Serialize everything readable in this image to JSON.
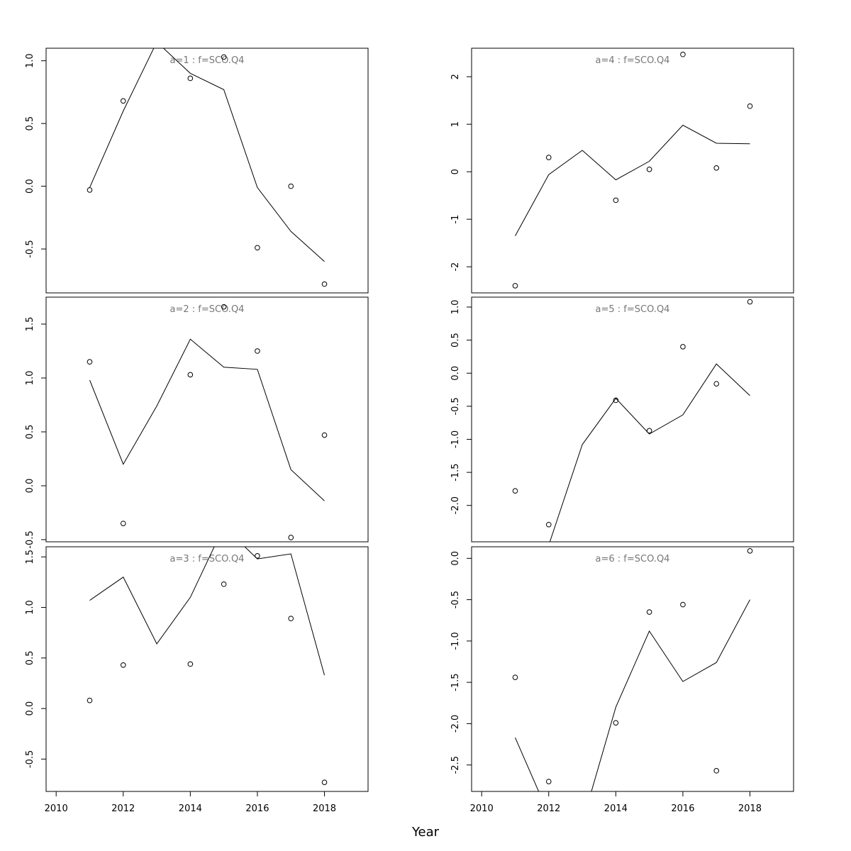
{
  "chart_data": {
    "type": "line",
    "xlabel": "Year",
    "xlim": [
      2009.7,
      2019.3
    ],
    "xticks": [
      2010,
      2012,
      2014,
      2016,
      2018
    ],
    "panels": [
      {
        "title": "a=1 : f=SCO.Q4",
        "ylim": [
          -0.85,
          1.1
        ],
        "yticks": [
          -0.5,
          0.0,
          0.5,
          1.0
        ],
        "yticklabels": [
          "-0.5",
          "0.0",
          "0.5",
          "1.0"
        ],
        "fitted": {
          "x": [
            2011,
            2012,
            2013,
            2014,
            2015,
            2016,
            2017,
            2018
          ],
          "y": [
            -0.01,
            0.6,
            1.15,
            0.9,
            0.77,
            -0.01,
            -0.36,
            -0.6
          ]
        },
        "observed": {
          "x": [
            2011,
            2012,
            2014,
            2015,
            2016,
            2017,
            2018
          ],
          "y": [
            -0.03,
            0.68,
            0.86,
            1.03,
            -0.49,
            0.0,
            -0.78
          ]
        }
      },
      {
        "title": "a=2 : f=SCO.Q4",
        "ylim": [
          -0.52,
          1.75
        ],
        "yticks": [
          -0.5,
          0.0,
          0.5,
          1.0,
          1.5
        ],
        "yticklabels": [
          "-0.5",
          "0.0",
          "0.5",
          "1.0",
          "1.5"
        ],
        "fitted": {
          "x": [
            2011,
            2012,
            2013,
            2014,
            2015,
            2016,
            2017,
            2018
          ],
          "y": [
            0.98,
            0.2,
            0.74,
            1.36,
            1.1,
            1.08,
            0.15,
            -0.14
          ]
        },
        "observed": {
          "x": [
            2011,
            2012,
            2014,
            2015,
            2016,
            2017,
            2018
          ],
          "y": [
            1.15,
            -0.35,
            1.03,
            1.66,
            1.25,
            -0.48,
            0.47
          ]
        }
      },
      {
        "title": "a=3 : f=SCO.Q4",
        "ylim": [
          -0.82,
          1.6
        ],
        "yticks": [
          -0.5,
          0.0,
          0.5,
          1.0,
          1.5
        ],
        "yticklabels": [
          "-0.5",
          "0.0",
          "0.5",
          "1.0",
          "1.5"
        ],
        "fitted": {
          "x": [
            2011,
            2012,
            2013,
            2014,
            2015,
            2016,
            2017,
            2018
          ],
          "y": [
            1.07,
            1.3,
            0.64,
            1.1,
            1.8,
            1.48,
            1.53,
            0.33
          ]
        },
        "observed": {
          "x": [
            2011,
            2012,
            2014,
            2015,
            2016,
            2017,
            2018
          ],
          "y": [
            0.08,
            0.43,
            0.44,
            1.23,
            1.51,
            0.89,
            -0.73
          ]
        }
      },
      {
        "title": "a=4 : f=SCO.Q4",
        "ylim": [
          -2.55,
          2.6
        ],
        "yticks": [
          -2,
          -1,
          0,
          1,
          2
        ],
        "yticklabels": [
          "-2",
          "-1",
          "0",
          "1",
          "2"
        ],
        "fitted": {
          "x": [
            2011,
            2012,
            2013,
            2014,
            2015,
            2016,
            2017,
            2018
          ],
          "y": [
            -1.35,
            -0.06,
            0.45,
            -0.17,
            0.22,
            0.98,
            0.6,
            0.59
          ]
        },
        "observed": {
          "x": [
            2011,
            2012,
            2014,
            2015,
            2016,
            2017,
            2018
          ],
          "y": [
            -2.4,
            0.3,
            -0.6,
            0.05,
            2.47,
            0.08,
            1.38
          ]
        }
      },
      {
        "title": "a=5 : f=SCO.Q4",
        "ylim": [
          -2.55,
          1.15
        ],
        "yticks": [
          -2.0,
          -1.5,
          -1.0,
          -0.5,
          0.0,
          0.5,
          1.0
        ],
        "yticklabels": [
          "-2.0",
          "-1.5",
          "-1.0",
          "-0.5",
          "0.0",
          "0.5",
          "1.0"
        ],
        "fitted": {
          "x": [
            2011,
            2012,
            2013,
            2014,
            2015,
            2016,
            2017,
            2018
          ],
          "y": [
            -3.1,
            -2.6,
            -1.08,
            -0.38,
            -0.92,
            -0.63,
            0.14,
            -0.34
          ]
        },
        "observed": {
          "x": [
            2011,
            2012,
            2014,
            2015,
            2016,
            2017,
            2018
          ],
          "y": [
            -1.78,
            -2.29,
            -0.41,
            -0.87,
            0.4,
            -0.16,
            1.08
          ]
        }
      },
      {
        "title": "a=6 : f=SCO.Q4",
        "ylim": [
          -2.82,
          0.14
        ],
        "yticks": [
          -2.5,
          -2.0,
          -1.5,
          -1.0,
          -0.5,
          0.0
        ],
        "yticklabels": [
          "-2.5",
          "-2.0",
          "-1.5",
          "-1.0",
          "-0.5",
          "0.0"
        ],
        "fitted": {
          "x": [
            2011,
            2012,
            2013,
            2014,
            2015,
            2016,
            2017,
            2018
          ],
          "y": [
            -2.17,
            -3.1,
            -3.2,
            -1.8,
            -0.88,
            -1.49,
            -1.26,
            -0.5
          ]
        },
        "observed": {
          "x": [
            2011,
            2012,
            2014,
            2015,
            2016,
            2017,
            2018
          ],
          "y": [
            -1.44,
            -2.7,
            -1.99,
            -0.65,
            -0.56,
            -2.57,
            0.09
          ]
        }
      }
    ]
  }
}
